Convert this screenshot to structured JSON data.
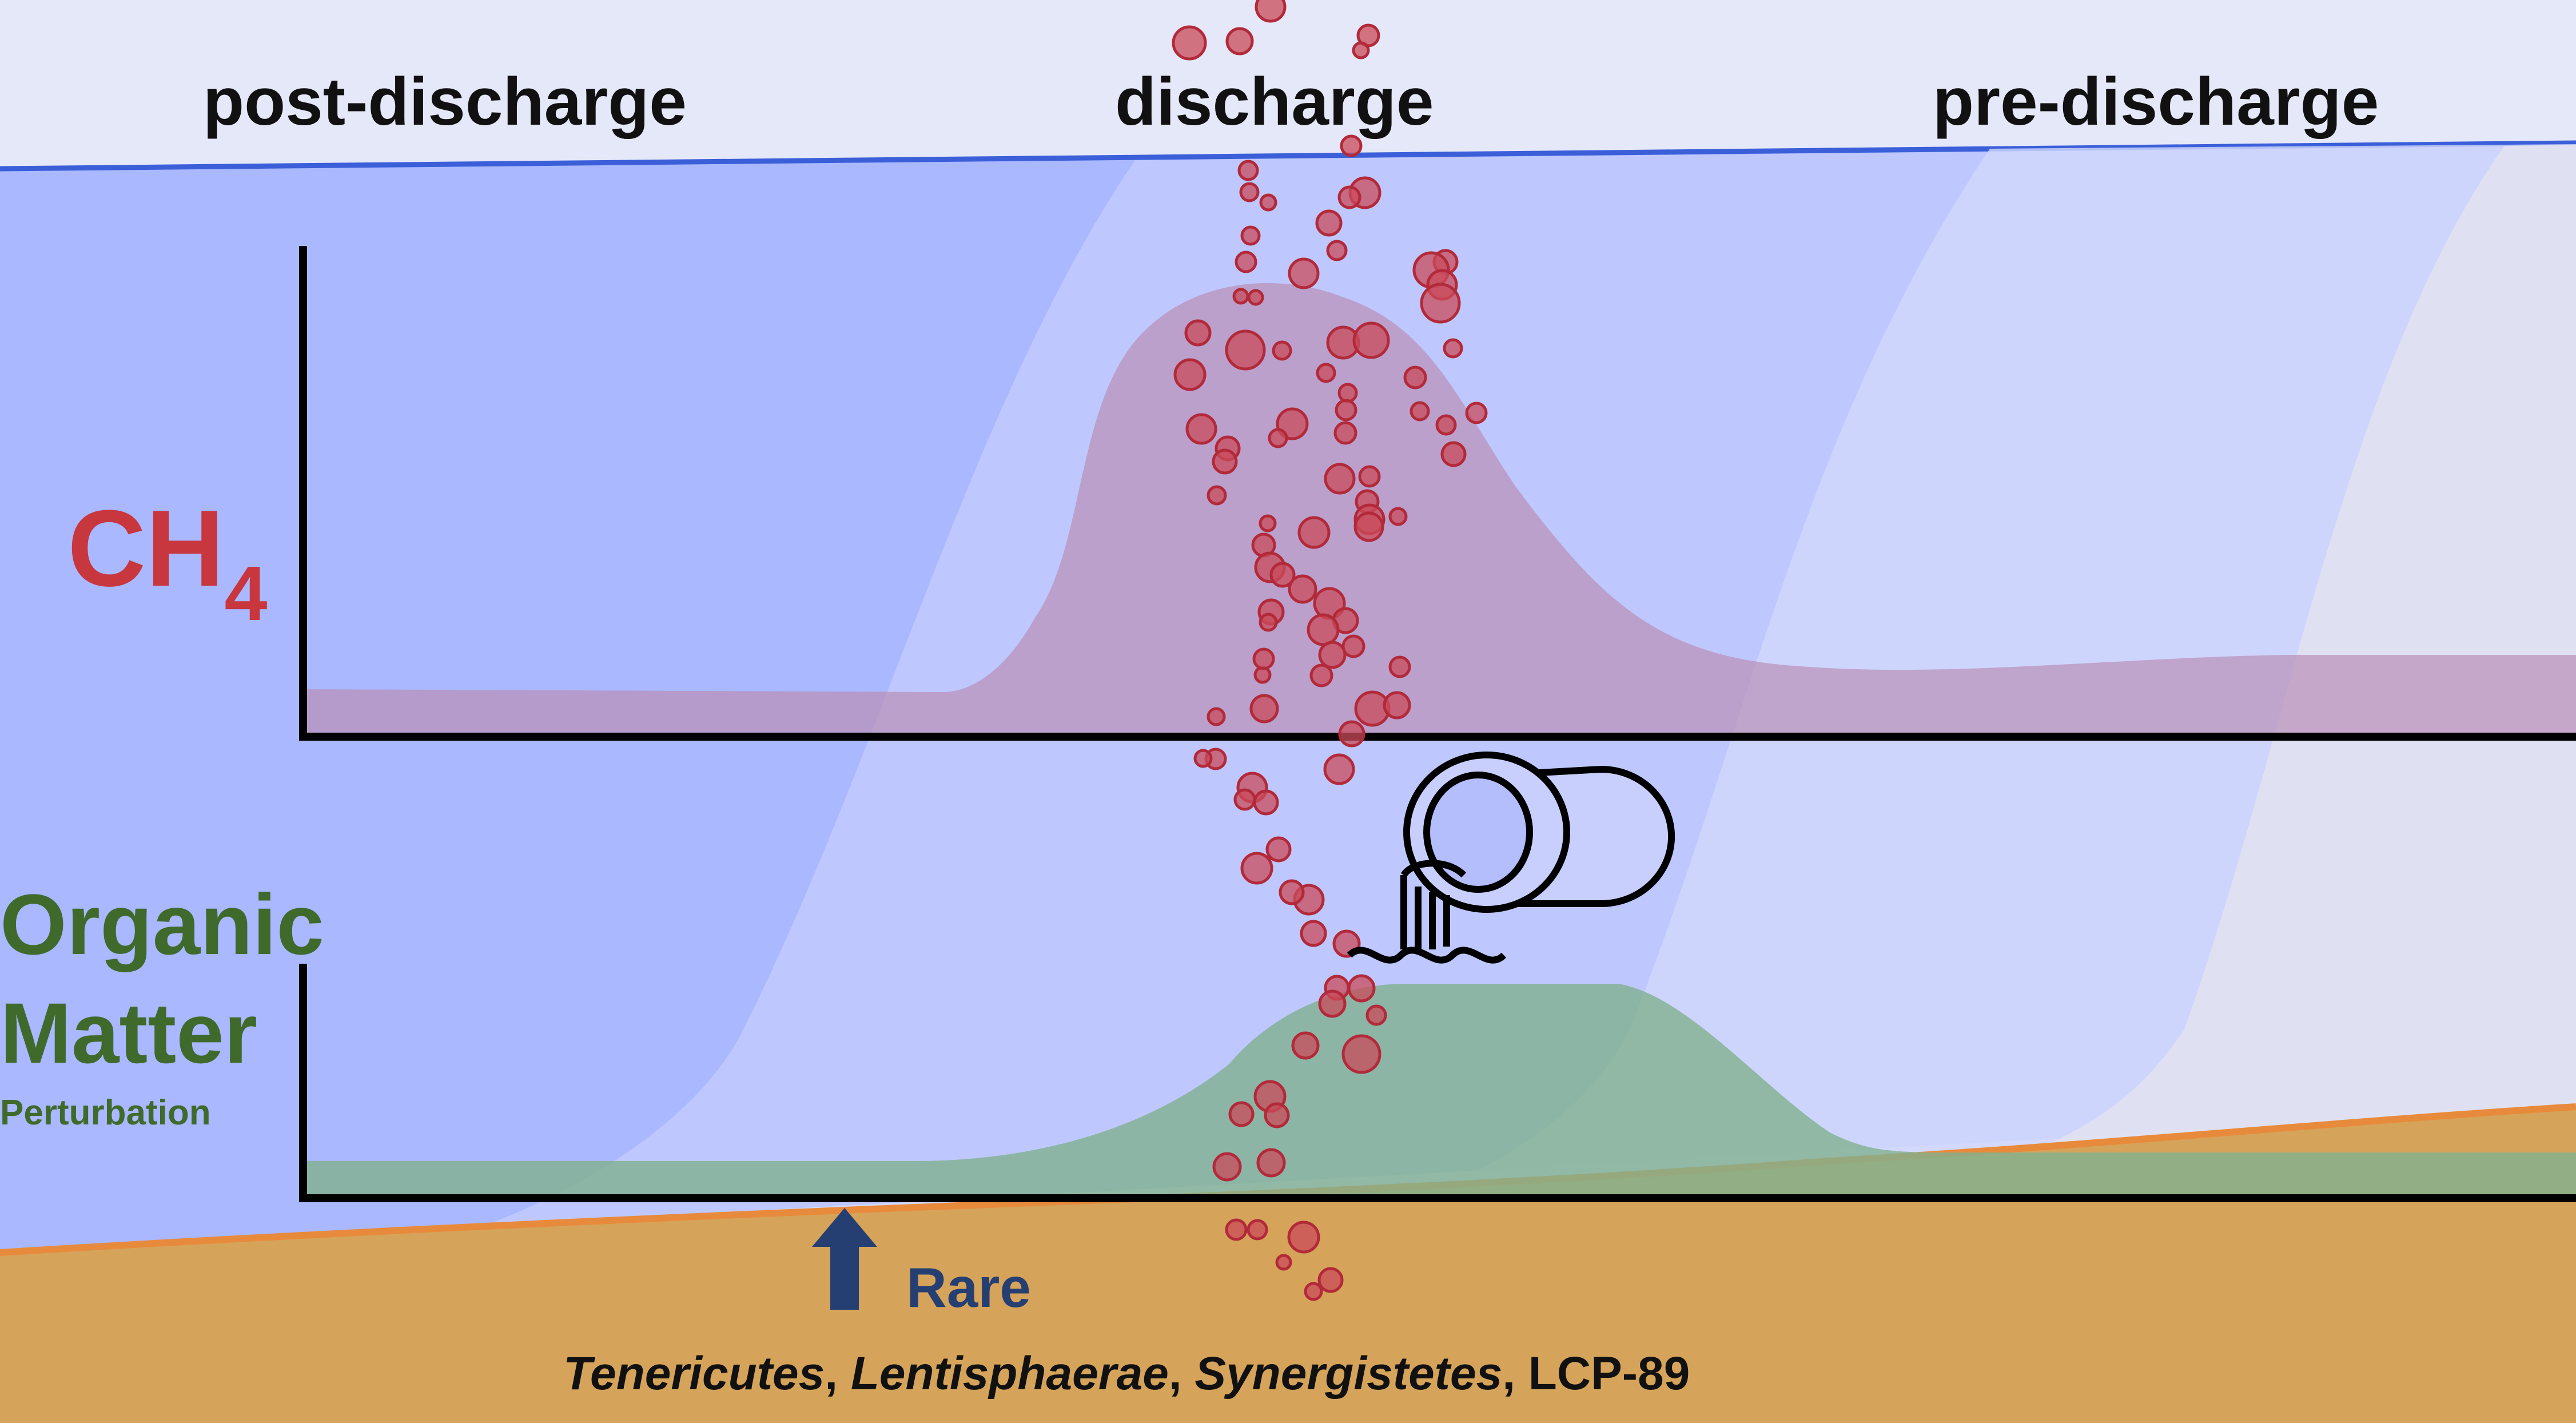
{
  "phases": {
    "post": "post-discharge",
    "during": "discharge",
    "pre": "pre-discharge"
  },
  "variables": {
    "ch4_main": "CH",
    "ch4_sub": "4",
    "organic_line1": "Organic",
    "organic_line2": "Matter",
    "organic_line3": "Perturbation"
  },
  "community_change": {
    "direction_word": "Rare",
    "arrow": "up-arrow-icon",
    "taxa": [
      {
        "name": "Tenericutes",
        "italic": true
      },
      {
        "name": "Lentisphaerae",
        "italic": true
      },
      {
        "name": "Synergistetes",
        "italic": true
      },
      {
        "name": "LCP-89",
        "italic": false
      }
    ]
  },
  "icons": {
    "discharge_source": "discharge-pipe-icon",
    "bubbles": "methane-bubble-icons"
  },
  "colors": {
    "ch4": "#c8363e",
    "organic_matter": "#3f6a2c",
    "water": "#a9b8ff",
    "sediment": "#d5a45a",
    "rare_arrow": "#263f72"
  }
}
